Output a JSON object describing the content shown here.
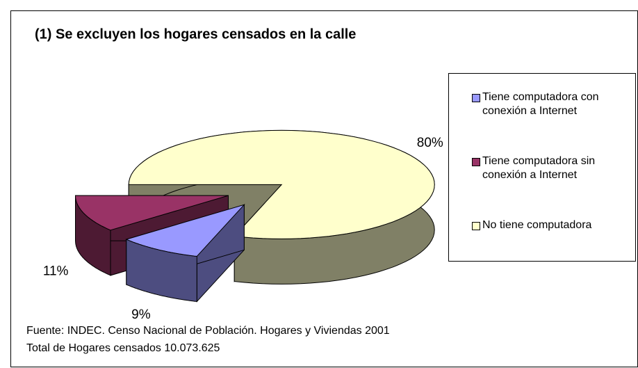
{
  "chart_data": {
    "type": "pie",
    "title": "(1) Se excluyen los hogares censados en la calle",
    "categories": [
      "Tiene computadora con conexión a Internet",
      "Tiene computadora sin conexión a Internet",
      "No tiene computadora"
    ],
    "values": [
      9,
      11,
      80
    ],
    "value_labels": [
      "9%",
      "11%",
      "80%"
    ],
    "colors": [
      "#9999ff",
      "#993366",
      "#ffffcc"
    ],
    "legend": "right",
    "notes": [
      "Fuente: INDEC. Censo Nacional de Población. Hogares y Viviendas 2001",
      "Total de Hogares censados 10.073.625"
    ]
  }
}
